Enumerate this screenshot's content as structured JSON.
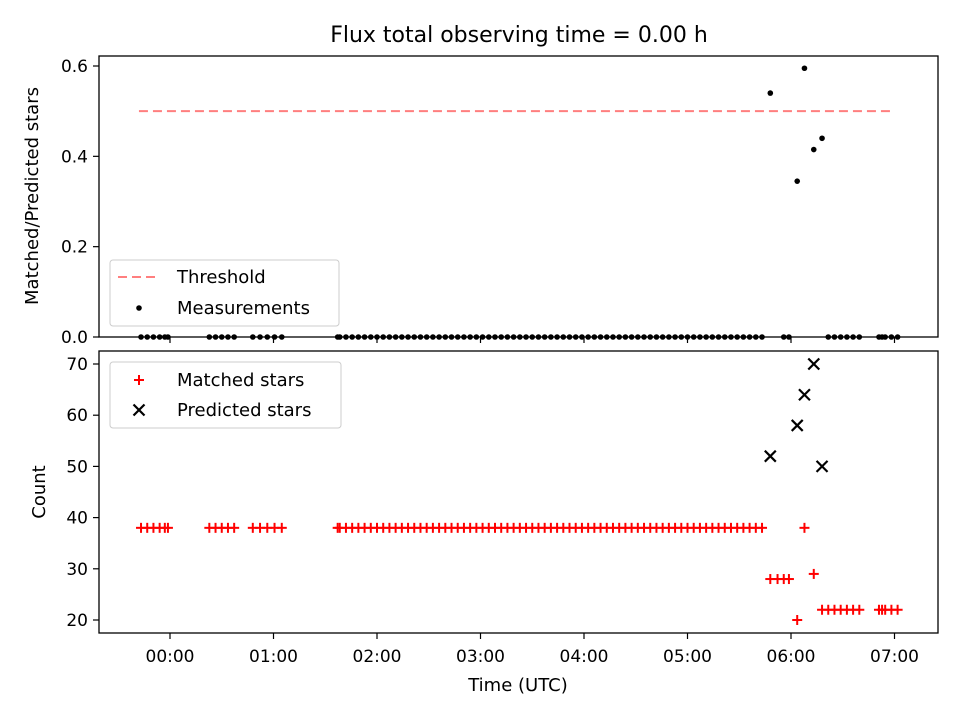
{
  "chart_data": [
    {
      "type": "scatter",
      "title": "Flux total observing time = 0.00 h",
      "ylabel": "Matched/Predicted stars",
      "xlabel": "",
      "ylim": [
        0,
        0.62
      ],
      "yticks": [
        "0.0",
        "0.2",
        "0.4",
        "0.6"
      ],
      "ytick_values": [
        0,
        0.2,
        0.4,
        0.6
      ],
      "xtick_hours": [
        0,
        1,
        2,
        3,
        4,
        5,
        6,
        7
      ],
      "legend_location": "lower-left",
      "threshold": {
        "name": "Threshold",
        "value": 0.5,
        "x_start": -0.3,
        "x_end": 7.0,
        "color": "#ff7f7f",
        "style": "dashed"
      },
      "measurements": {
        "name": "Measurements",
        "color": "#000000",
        "x": [
          -0.28,
          -0.22,
          -0.16,
          -0.1,
          -0.05,
          -0.02,
          0.38,
          0.44,
          0.5,
          0.56,
          0.62,
          0.8,
          0.87,
          0.94,
          1.01,
          1.08,
          1.62,
          1.64,
          1.7,
          1.76,
          1.82,
          1.88,
          1.94,
          2.0,
          2.06,
          2.12,
          2.18,
          2.24,
          2.3,
          2.36,
          2.42,
          2.48,
          2.54,
          2.6,
          2.66,
          2.72,
          2.78,
          2.84,
          2.9,
          2.96,
          3.02,
          3.08,
          3.14,
          3.2,
          3.26,
          3.32,
          3.38,
          3.44,
          3.5,
          3.56,
          3.62,
          3.68,
          3.74,
          3.8,
          3.86,
          3.92,
          3.98,
          4.04,
          4.1,
          4.16,
          4.22,
          4.28,
          4.34,
          4.4,
          4.46,
          4.52,
          4.58,
          4.64,
          4.7,
          4.76,
          4.82,
          4.88,
          4.94,
          5.0,
          5.06,
          5.12,
          5.18,
          5.24,
          5.3,
          5.36,
          5.42,
          5.48,
          5.54,
          5.6,
          5.66,
          5.72,
          5.8,
          5.93,
          5.98,
          6.06,
          6.13,
          6.22,
          6.3,
          6.36,
          6.42,
          6.48,
          6.54,
          6.6,
          6.66,
          6.85,
          6.88,
          6.91,
          6.97,
          7.03
        ],
        "y": [
          0,
          0,
          0,
          0,
          0,
          0,
          0,
          0,
          0,
          0,
          0,
          0,
          0,
          0,
          0,
          0,
          0,
          0,
          0,
          0,
          0,
          0,
          0,
          0,
          0,
          0,
          0,
          0,
          0,
          0,
          0,
          0,
          0,
          0,
          0,
          0,
          0,
          0,
          0,
          0,
          0,
          0,
          0,
          0,
          0,
          0,
          0,
          0,
          0,
          0,
          0,
          0,
          0,
          0,
          0,
          0,
          0,
          0,
          0,
          0,
          0,
          0,
          0,
          0,
          0,
          0,
          0,
          0,
          0,
          0,
          0,
          0,
          0,
          0,
          0,
          0,
          0,
          0,
          0,
          0,
          0,
          0,
          0,
          0,
          0,
          0,
          0.54,
          0,
          0,
          0.345,
          0.595,
          0.415,
          0.44,
          0,
          0,
          0,
          0,
          0,
          0,
          0,
          0,
          0,
          0,
          0
        ]
      }
    },
    {
      "type": "scatter",
      "title": "",
      "ylabel": "Count",
      "xlabel": "Time (UTC)",
      "ylim": [
        17.5,
        72.5
      ],
      "yticks": [
        "20",
        "30",
        "40",
        "50",
        "60",
        "70"
      ],
      "ytick_values": [
        20,
        30,
        40,
        50,
        60,
        70
      ],
      "xticks": [
        "00:00",
        "01:00",
        "02:00",
        "03:00",
        "04:00",
        "05:00",
        "06:00",
        "07:00"
      ],
      "xtick_hours": [
        0,
        1,
        2,
        3,
        4,
        5,
        6,
        7
      ],
      "legend_location": "upper-left",
      "series": [
        {
          "name": "Matched stars",
          "marker": "plus",
          "color": "#ff0000",
          "x": [
            -0.28,
            -0.22,
            -0.16,
            -0.1,
            -0.05,
            -0.02,
            0.38,
            0.44,
            0.5,
            0.56,
            0.62,
            0.8,
            0.87,
            0.94,
            1.01,
            1.08,
            1.62,
            1.64,
            1.7,
            1.76,
            1.82,
            1.88,
            1.94,
            2.0,
            2.06,
            2.12,
            2.18,
            2.24,
            2.3,
            2.36,
            2.42,
            2.48,
            2.54,
            2.6,
            2.66,
            2.72,
            2.78,
            2.84,
            2.9,
            2.96,
            3.02,
            3.08,
            3.14,
            3.2,
            3.26,
            3.32,
            3.38,
            3.44,
            3.5,
            3.56,
            3.62,
            3.68,
            3.74,
            3.8,
            3.86,
            3.92,
            3.98,
            4.04,
            4.1,
            4.16,
            4.22,
            4.28,
            4.34,
            4.4,
            4.46,
            4.52,
            4.58,
            4.64,
            4.7,
            4.76,
            4.82,
            4.88,
            4.94,
            5.0,
            5.06,
            5.12,
            5.18,
            5.24,
            5.3,
            5.36,
            5.42,
            5.48,
            5.54,
            5.6,
            5.66,
            5.72,
            5.8,
            5.87,
            5.93,
            5.98,
            6.06,
            6.13,
            6.22,
            6.3,
            6.36,
            6.42,
            6.48,
            6.54,
            6.6,
            6.66,
            6.85,
            6.88,
            6.91,
            6.97,
            7.03
          ],
          "y": [
            38,
            38,
            38,
            38,
            38,
            38,
            38,
            38,
            38,
            38,
            38,
            38,
            38,
            38,
            38,
            38,
            38,
            38,
            38,
            38,
            38,
            38,
            38,
            38,
            38,
            38,
            38,
            38,
            38,
            38,
            38,
            38,
            38,
            38,
            38,
            38,
            38,
            38,
            38,
            38,
            38,
            38,
            38,
            38,
            38,
            38,
            38,
            38,
            38,
            38,
            38,
            38,
            38,
            38,
            38,
            38,
            38,
            38,
            38,
            38,
            38,
            38,
            38,
            38,
            38,
            38,
            38,
            38,
            38,
            38,
            38,
            38,
            38,
            38,
            38,
            38,
            38,
            38,
            38,
            38,
            38,
            38,
            38,
            38,
            38,
            38,
            28,
            28,
            28,
            28,
            20,
            38,
            29,
            22,
            22,
            22,
            22,
            22,
            22,
            22,
            22,
            22,
            22,
            22,
            22
          ]
        },
        {
          "name": "Predicted stars",
          "marker": "x",
          "color": "#000000",
          "x": [
            5.8,
            6.06,
            6.13,
            6.22,
            6.3
          ],
          "y": [
            52,
            58,
            64,
            70,
            50
          ]
        }
      ]
    }
  ]
}
